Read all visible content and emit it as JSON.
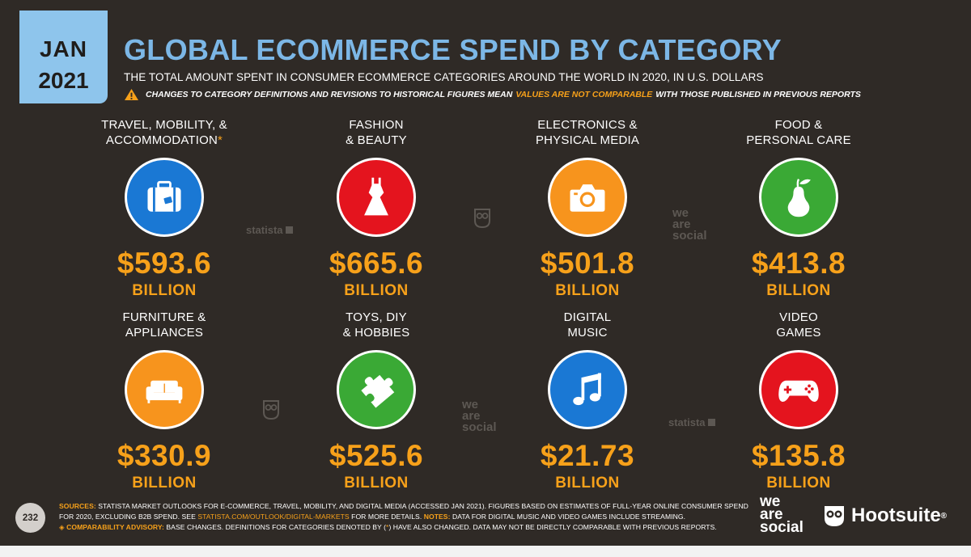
{
  "date": {
    "month": "JAN",
    "year": "2021"
  },
  "title": "GLOBAL ECOMMERCE SPEND BY CATEGORY",
  "subtitle": "THE TOTAL AMOUNT SPENT IN CONSUMER ECOMMERCE CATEGORIES AROUND THE WORLD IN 2020, IN U.S. DOLLARS",
  "warning": {
    "before": "CHANGES TO CATEGORY DEFINITIONS AND REVISIONS TO HISTORICAL FIGURES MEAN",
    "highlight": "VALUES ARE NOT COMPARABLE",
    "after": "WITH THOSE PUBLISHED IN PREVIOUS REPORTS"
  },
  "categories": [
    {
      "label_line1": "TRAVEL, MOBILITY, &",
      "label_line2": "ACCOMMODATION",
      "asterisk": "*",
      "value": "$593.6",
      "unit": "BILLION",
      "icon": "suitcase-icon",
      "color": "#1a78d4"
    },
    {
      "label_line1": "FASHION",
      "label_line2": "& BEAUTY",
      "value": "$665.6",
      "unit": "BILLION",
      "icon": "dress-icon",
      "color": "#e4141e"
    },
    {
      "label_line1": "ELECTRONICS &",
      "label_line2": "PHYSICAL MEDIA",
      "value": "$501.8",
      "unit": "BILLION",
      "icon": "camera-icon",
      "color": "#f7941d"
    },
    {
      "label_line1": "FOOD &",
      "label_line2": "PERSONAL CARE",
      "value": "$413.8",
      "unit": "BILLION",
      "icon": "pear-icon",
      "color": "#3aa935"
    },
    {
      "label_line1": "FURNITURE &",
      "label_line2": "APPLIANCES",
      "value": "$330.9",
      "unit": "BILLION",
      "icon": "sofa-icon",
      "color": "#f7941d"
    },
    {
      "label_line1": "TOYS, DIY",
      "label_line2": "& HOBBIES",
      "value": "$525.6",
      "unit": "BILLION",
      "icon": "puzzle-icon",
      "color": "#3aa935"
    },
    {
      "label_line1": "DIGITAL",
      "label_line2": "MUSIC",
      "value": "$21.73",
      "unit": "BILLION",
      "icon": "music-note-icon",
      "color": "#1a78d4"
    },
    {
      "label_line1": "VIDEO",
      "label_line2": "GAMES",
      "value": "$135.8",
      "unit": "BILLION",
      "icon": "gamepad-icon",
      "color": "#e4141e"
    }
  ],
  "watermarks": {
    "statista": "statista",
    "we_are_social": [
      "we",
      "are",
      "social"
    ]
  },
  "footer": {
    "page_number": "232",
    "sources_label": "SOURCES:",
    "sources_text_1": "STATISTA MARKET OUTLOOKS FOR E-COMMERCE, TRAVEL, MOBILITY, AND DIGITAL MEDIA (ACCESSED JAN 2021). FIGURES BASED ON ESTIMATES OF FULL-YEAR ONLINE CONSUMER SPEND FOR 2020, EXCLUDING B2B SPEND. SEE",
    "sources_link": "STATISTA.COM/OUTLOOK/DIGITAL-MARKETS",
    "sources_text_2": "FOR MORE DETAILS.",
    "notes_label": "NOTES:",
    "notes_text": "DATA FOR DIGITAL MUSIC AND VIDEO GAMES INCLUDE STREAMING.",
    "advisory_label": "◈ COMPARABILITY ADVISORY:",
    "advisory_text_1": "BASE CHANGES. DEFINITIONS FOR CATEGORIES DENOTED BY (",
    "advisory_ast": "*",
    "advisory_text_2": ") HAVE ALSO CHANGED. DATA MAY NOT BE DIRECTLY COMPARABLE WITH PREVIOUS REPORTS."
  },
  "logos": {
    "we_are_social": [
      "we",
      "are",
      "social"
    ],
    "hootsuite": "Hootsuite",
    "hootsuite_mark": "®"
  },
  "colors": {
    "background": "#2f2a26",
    "accent_blue": "#7cb7e6",
    "accent_orange": "#f7a11a"
  }
}
